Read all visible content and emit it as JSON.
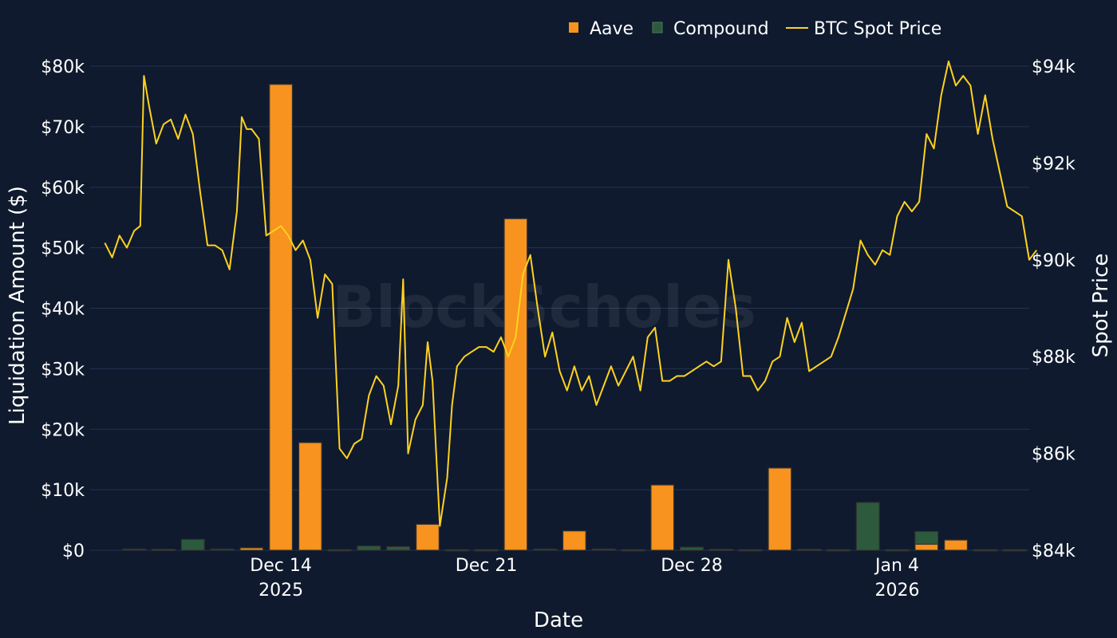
{
  "chart_data": {
    "type": "bar",
    "title": "",
    "xlabel": "Date",
    "ylabel": "Liquidation Amount ($)",
    "y2label": "Spot Price",
    "watermark": "BlockScholes",
    "ylim": [
      0,
      80000
    ],
    "y2lim": [
      84000,
      94000
    ],
    "x_range": [
      "2025-12-08",
      "2026-01-08"
    ],
    "grid": true,
    "legend_position": "top-right",
    "colors": {
      "background": "#0f1a2e",
      "grid": "#25334f",
      "aave": "#f7931e",
      "compound": "#2d5a3d",
      "btc": "#ffd21f",
      "text": "#ffffff"
    },
    "legend": [
      {
        "label": "Aave",
        "kind": "bar",
        "color": "#f7931e"
      },
      {
        "label": "Compound",
        "kind": "bar",
        "color": "#2d5a3d"
      },
      {
        "label": "BTC Spot Price",
        "kind": "line",
        "color": "#ffd21f"
      }
    ],
    "y_ticks": [
      "$0",
      "$10k",
      "$20k",
      "$30k",
      "$40k",
      "$50k",
      "$60k",
      "$70k",
      "$80k"
    ],
    "y_tick_values": [
      0,
      10000,
      20000,
      30000,
      40000,
      50000,
      60000,
      70000,
      80000
    ],
    "y2_ticks": [
      "$84k",
      "$86k",
      "$88k",
      "$90k",
      "$92k",
      "$94k"
    ],
    "y2_tick_values": [
      84000,
      86000,
      88000,
      90000,
      92000,
      94000
    ],
    "x_ticks": [
      {
        "date": "2025-12-14",
        "label": "Dec 14",
        "sub": "2025"
      },
      {
        "date": "2025-12-21",
        "label": "Dec 21",
        "sub": ""
      },
      {
        "date": "2025-12-28",
        "label": "Dec 28",
        "sub": ""
      },
      {
        "date": "2026-01-04",
        "label": "Jan 4",
        "sub": "2026"
      }
    ],
    "bars": [
      {
        "date": "2025-12-09",
        "aave": 0,
        "compound": 200
      },
      {
        "date": "2025-12-10",
        "aave": 0,
        "compound": 150
      },
      {
        "date": "2025-12-11",
        "aave": 0,
        "compound": 1800
      },
      {
        "date": "2025-12-12",
        "aave": 0,
        "compound": 200
      },
      {
        "date": "2025-12-13",
        "aave": 400,
        "compound": 0
      },
      {
        "date": "2025-12-14",
        "aave": 77000,
        "compound": 0
      },
      {
        "date": "2025-12-15",
        "aave": 17800,
        "compound": 0
      },
      {
        "date": "2025-12-16",
        "aave": 0,
        "compound": 100
      },
      {
        "date": "2025-12-17",
        "aave": 0,
        "compound": 700
      },
      {
        "date": "2025-12-18",
        "aave": 0,
        "compound": 600
      },
      {
        "date": "2025-12-19",
        "aave": 4300,
        "compound": 0
      },
      {
        "date": "2025-12-20",
        "aave": 0,
        "compound": 100
      },
      {
        "date": "2025-12-21",
        "aave": 0,
        "compound": 100
      },
      {
        "date": "2025-12-22",
        "aave": 54800,
        "compound": 0
      },
      {
        "date": "2025-12-23",
        "aave": 0,
        "compound": 200
      },
      {
        "date": "2025-12-24",
        "aave": 3200,
        "compound": 0
      },
      {
        "date": "2025-12-25",
        "aave": 0,
        "compound": 200
      },
      {
        "date": "2025-12-26",
        "aave": 0,
        "compound": 100
      },
      {
        "date": "2025-12-27",
        "aave": 10800,
        "compound": 0
      },
      {
        "date": "2025-12-28",
        "aave": 0,
        "compound": 500
      },
      {
        "date": "2025-12-29",
        "aave": 0,
        "compound": 150
      },
      {
        "date": "2025-12-30",
        "aave": 0,
        "compound": 100
      },
      {
        "date": "2025-12-31",
        "aave": 13600,
        "compound": 0
      },
      {
        "date": "2026-01-01",
        "aave": 0,
        "compound": 150
      },
      {
        "date": "2026-01-02",
        "aave": 0,
        "compound": 100
      },
      {
        "date": "2026-01-03",
        "aave": 0,
        "compound": 7900
      },
      {
        "date": "2026-01-04",
        "aave": 0,
        "compound": 100
      },
      {
        "date": "2026-01-05",
        "aave": 1000,
        "compound": 2100
      },
      {
        "date": "2026-01-06",
        "aave": 1700,
        "compound": 0
      },
      {
        "date": "2026-01-07",
        "aave": 0,
        "compound": 100
      },
      {
        "date": "2026-01-08",
        "aave": 0,
        "compound": 100
      }
    ],
    "btc": [
      [
        "2025-12-08 00:00",
        90350
      ],
      [
        "2025-12-08 06:00",
        90050
      ],
      [
        "2025-12-08 12:00",
        90500
      ],
      [
        "2025-12-08 18:00",
        90250
      ],
      [
        "2025-12-09 00:00",
        90600
      ],
      [
        "2025-12-09 05:00",
        90700
      ],
      [
        "2025-12-09 08:00",
        93800
      ],
      [
        "2025-12-09 12:00",
        93200
      ],
      [
        "2025-12-09 18:00",
        92400
      ],
      [
        "2025-12-10 00:00",
        92800
      ],
      [
        "2025-12-10 06:00",
        92900
      ],
      [
        "2025-12-10 12:00",
        92500
      ],
      [
        "2025-12-10 18:00",
        93000
      ],
      [
        "2025-12-11 00:00",
        92600
      ],
      [
        "2025-12-11 06:00",
        91400
      ],
      [
        "2025-12-11 12:00",
        90300
      ],
      [
        "2025-12-11 18:00",
        90300
      ],
      [
        "2025-12-12 00:00",
        90200
      ],
      [
        "2025-12-12 06:00",
        89800
      ],
      [
        "2025-12-12 12:00",
        91000
      ],
      [
        "2025-12-12 16:00",
        92950
      ],
      [
        "2025-12-12 20:00",
        92700
      ],
      [
        "2025-12-13 00:00",
        92700
      ],
      [
        "2025-12-13 06:00",
        92500
      ],
      [
        "2025-12-13 12:00",
        90500
      ],
      [
        "2025-12-13 18:00",
        90600
      ],
      [
        "2025-12-14 00:00",
        90700
      ],
      [
        "2025-12-14 06:00",
        90500
      ],
      [
        "2025-12-14 12:00",
        90200
      ],
      [
        "2025-12-14 18:00",
        90400
      ],
      [
        "2025-12-15 00:00",
        90000
      ],
      [
        "2025-12-15 06:00",
        88800
      ],
      [
        "2025-12-15 12:00",
        89700
      ],
      [
        "2025-12-15 18:00",
        89500
      ],
      [
        "2025-12-16 00:00",
        86100
      ],
      [
        "2025-12-16 06:00",
        85900
      ],
      [
        "2025-12-16 12:00",
        86200
      ],
      [
        "2025-12-16 18:00",
        86300
      ],
      [
        "2025-12-17 00:00",
        87200
      ],
      [
        "2025-12-17 06:00",
        87600
      ],
      [
        "2025-12-17 12:00",
        87400
      ],
      [
        "2025-12-17 18:00",
        86600
      ],
      [
        "2025-12-18 00:00",
        87400
      ],
      [
        "2025-12-18 04:00",
        89600
      ],
      [
        "2025-12-18 08:00",
        86000
      ],
      [
        "2025-12-18 14:00",
        86700
      ],
      [
        "2025-12-18 20:00",
        87000
      ],
      [
        "2025-12-19 00:00",
        88300
      ],
      [
        "2025-12-19 04:00",
        87500
      ],
      [
        "2025-12-19 10:00",
        84500
      ],
      [
        "2025-12-19 16:00",
        85500
      ],
      [
        "2025-12-19 20:00",
        87000
      ],
      [
        "2025-12-20 00:00",
        87800
      ],
      [
        "2025-12-20 06:00",
        88000
      ],
      [
        "2025-12-20 12:00",
        88100
      ],
      [
        "2025-12-20 18:00",
        88200
      ],
      [
        "2025-12-21 00:00",
        88200
      ],
      [
        "2025-12-21 06:00",
        88100
      ],
      [
        "2025-12-21 12:00",
        88400
      ],
      [
        "2025-12-21 18:00",
        88000
      ],
      [
        "2025-12-22 00:00",
        88400
      ],
      [
        "2025-12-22 06:00",
        89700
      ],
      [
        "2025-12-22 12:00",
        90100
      ],
      [
        "2025-12-22 18:00",
        89000
      ],
      [
        "2025-12-23 00:00",
        88000
      ],
      [
        "2025-12-23 06:00",
        88500
      ],
      [
        "2025-12-23 12:00",
        87700
      ],
      [
        "2025-12-23 18:00",
        87300
      ],
      [
        "2025-12-24 00:00",
        87800
      ],
      [
        "2025-12-24 06:00",
        87300
      ],
      [
        "2025-12-24 12:00",
        87600
      ],
      [
        "2025-12-24 18:00",
        87000
      ],
      [
        "2025-12-25 00:00",
        87400
      ],
      [
        "2025-12-25 06:00",
        87800
      ],
      [
        "2025-12-25 12:00",
        87400
      ],
      [
        "2025-12-25 18:00",
        87700
      ],
      [
        "2025-12-26 00:00",
        88000
      ],
      [
        "2025-12-26 06:00",
        87300
      ],
      [
        "2025-12-26 12:00",
        88400
      ],
      [
        "2025-12-26 18:00",
        88600
      ],
      [
        "2025-12-27 00:00",
        87500
      ],
      [
        "2025-12-27 06:00",
        87500
      ],
      [
        "2025-12-27 12:00",
        87600
      ],
      [
        "2025-12-27 18:00",
        87600
      ],
      [
        "2025-12-28 00:00",
        87700
      ],
      [
        "2025-12-28 06:00",
        87800
      ],
      [
        "2025-12-28 12:00",
        87900
      ],
      [
        "2025-12-28 18:00",
        87800
      ],
      [
        "2025-12-29 00:00",
        87900
      ],
      [
        "2025-12-29 06:00",
        90000
      ],
      [
        "2025-12-29 12:00",
        89000
      ],
      [
        "2025-12-29 18:00",
        87600
      ],
      [
        "2025-12-30 00:00",
        87600
      ],
      [
        "2025-12-30 06:00",
        87300
      ],
      [
        "2025-12-30 12:00",
        87500
      ],
      [
        "2025-12-30 18:00",
        87900
      ],
      [
        "2025-12-31 00:00",
        88000
      ],
      [
        "2025-12-31 06:00",
        88800
      ],
      [
        "2025-12-31 12:00",
        88300
      ],
      [
        "2025-12-31 18:00",
        88700
      ],
      [
        "2026-01-01 00:00",
        87700
      ],
      [
        "2026-01-01 06:00",
        87800
      ],
      [
        "2026-01-01 12:00",
        87900
      ],
      [
        "2026-01-01 18:00",
        88000
      ],
      [
        "2026-01-02 00:00",
        88400
      ],
      [
        "2026-01-02 06:00",
        88900
      ],
      [
        "2026-01-02 12:00",
        89400
      ],
      [
        "2026-01-02 18:00",
        90400
      ],
      [
        "2026-01-03 00:00",
        90100
      ],
      [
        "2026-01-03 06:00",
        89900
      ],
      [
        "2026-01-03 12:00",
        90200
      ],
      [
        "2026-01-03 18:00",
        90100
      ],
      [
        "2026-01-04 00:00",
        90900
      ],
      [
        "2026-01-04 06:00",
        91200
      ],
      [
        "2026-01-04 12:00",
        91000
      ],
      [
        "2026-01-04 18:00",
        91200
      ],
      [
        "2026-01-05 00:00",
        92600
      ],
      [
        "2026-01-05 06:00",
        92300
      ],
      [
        "2026-01-05 12:00",
        93400
      ],
      [
        "2026-01-05 18:00",
        94100
      ],
      [
        "2026-01-06 00:00",
        93600
      ],
      [
        "2026-01-06 06:00",
        93800
      ],
      [
        "2026-01-06 12:00",
        93600
      ],
      [
        "2026-01-06 18:00",
        92600
      ],
      [
        "2026-01-07 00:00",
        93400
      ],
      [
        "2026-01-07 06:00",
        92500
      ],
      [
        "2026-01-07 12:00",
        91800
      ],
      [
        "2026-01-07 18:00",
        91100
      ],
      [
        "2026-01-08 00:00",
        91000
      ],
      [
        "2026-01-08 06:00",
        90900
      ],
      [
        "2026-01-08 12:00",
        90000
      ],
      [
        "2026-01-08 18:00",
        90200
      ]
    ]
  }
}
